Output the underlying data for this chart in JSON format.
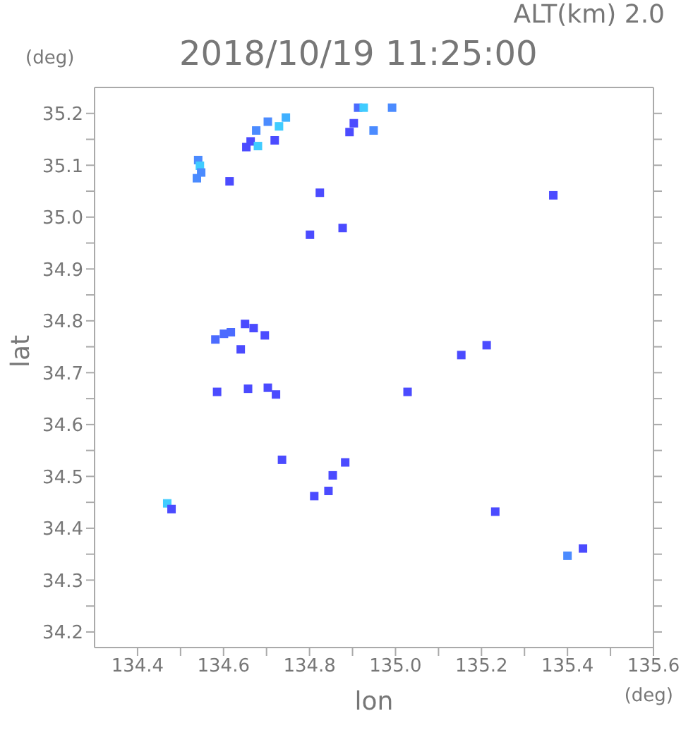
{
  "chart_data": {
    "type": "scatter",
    "title": "2018/10/19 11:25:00",
    "xlabel": "lon",
    "ylabel": "lat",
    "annotations": [
      "ALT(km) 2.0",
      "(deg)",
      "(deg)"
    ],
    "marker": "square",
    "grid": false,
    "legend": false,
    "xlim": [
      134.3,
      135.6
    ],
    "xticks": [
      134.4,
      {
        "value": 134.5,
        "label": null
      },
      134.6,
      {
        "value": 134.7,
        "label": null
      },
      134.8,
      {
        "value": 134.9,
        "label": null
      },
      {
        "value": 135,
        "label": "135.0"
      },
      {
        "value": 135.1,
        "label": null
      },
      135.2,
      {
        "value": 135.3,
        "label": null
      },
      135.4,
      {
        "value": 135.5,
        "label": null
      },
      135.6
    ],
    "ylim": [
      34.17,
      35.25
    ],
    "yticks": [
      34.2,
      {
        "value": 34.25,
        "label": null
      },
      34.3,
      {
        "value": 34.35,
        "label": null
      },
      34.4,
      {
        "value": 34.45,
        "label": null
      },
      34.5,
      {
        "value": 34.55,
        "label": null
      },
      34.6,
      {
        "value": 34.65,
        "label": null
      },
      34.7,
      {
        "value": 34.75,
        "label": null
      },
      34.8,
      {
        "value": 34.85,
        "label": null
      },
      34.9,
      {
        "value": 34.95,
        "label": null
      },
      {
        "value": 35,
        "label": "35.0"
      },
      {
        "value": 35.05,
        "label": null
      },
      35.1,
      {
        "value": 35.15,
        "label": null
      },
      35.2
    ],
    "series": [
      {
        "x": [
          134.913,
          134.926,
          134.992,
          134.745,
          134.703,
          134.676,
          134.663,
          134.653,
          134.68,
          134.719,
          134.729,
          134.903,
          134.893,
          134.949,
          134.541,
          134.545,
          134.548,
          134.538,
          134.614,
          134.824,
          135.367,
          134.877,
          134.801,
          134.581,
          134.601,
          134.617,
          134.67,
          134.696,
          134.64,
          134.65,
          135.212,
          135.153,
          134.585,
          134.657,
          134.703,
          134.722,
          135.028,
          134.736,
          134.883,
          134.854,
          134.844,
          134.811,
          134.469,
          134.479,
          135.232,
          135.4,
          135.436
        ],
        "values": [
          35.211,
          35.211,
          35.211,
          35.192,
          35.184,
          35.167,
          35.146,
          35.135,
          35.137,
          35.148,
          35.175,
          35.181,
          35.164,
          35.167,
          35.11,
          35.099,
          35.086,
          35.075,
          35.069,
          35.047,
          35.042,
          34.979,
          34.966,
          34.764,
          34.775,
          34.778,
          34.786,
          34.772,
          34.745,
          34.794,
          34.753,
          34.734,
          34.663,
          34.669,
          34.671,
          34.658,
          34.663,
          34.532,
          34.527,
          34.502,
          34.472,
          34.462,
          34.448,
          34.437,
          34.432,
          34.347,
          34.361
        ],
        "colors": [
          "#4b6bff",
          "#40ccff",
          "#4b8bff",
          "#40b0ff",
          "#4b8bff",
          "#4b8bff",
          "#4b4bff",
          "#4b4bff",
          "#40ccff",
          "#4b4bff",
          "#40ccff",
          "#4b4bff",
          "#4b4bff",
          "#4b8bff",
          "#4b8bff",
          "#40ccff",
          "#4b8bff",
          "#4b8bff",
          "#4b4bff",
          "#4b4bff",
          "#4b4bff",
          "#4b4bff",
          "#4b4bff",
          "#4b6bff",
          "#4b6bff",
          "#4b6bff",
          "#4b4bff",
          "#4b4bff",
          "#4b4bff",
          "#4b4bff",
          "#4b4bff",
          "#4b4bff",
          "#4b4bff",
          "#4b4bff",
          "#4b4bff",
          "#4b4bff",
          "#4b4bff",
          "#4b4bff",
          "#4b4bff",
          "#4b4bff",
          "#4b4bff",
          "#4b4bff",
          "#40ccff",
          "#4b4bff",
          "#4b4bff",
          "#4b8bff",
          "#4b4bff"
        ]
      }
    ]
  }
}
